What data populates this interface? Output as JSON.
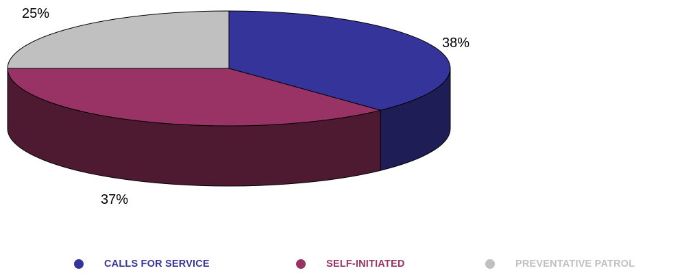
{
  "chart_data": {
    "type": "pie",
    "style": "3d",
    "title": "",
    "slices": [
      {
        "label": "CALLS FOR SERVICE",
        "value": 38,
        "value_label": "38%",
        "color": "#35349a",
        "side_color": "#1e1d55"
      },
      {
        "label": "SELF-INITIATED",
        "value": 37,
        "value_label": "37%",
        "color": "#993366",
        "side_color": "#4e1a32"
      },
      {
        "label": "PREVENTATIVE PATROL",
        "value": 25,
        "value_label": "25%",
        "color": "#c0c0c0",
        "side_color": "#8a8a8a"
      }
    ],
    "legend_position": "bottom"
  }
}
